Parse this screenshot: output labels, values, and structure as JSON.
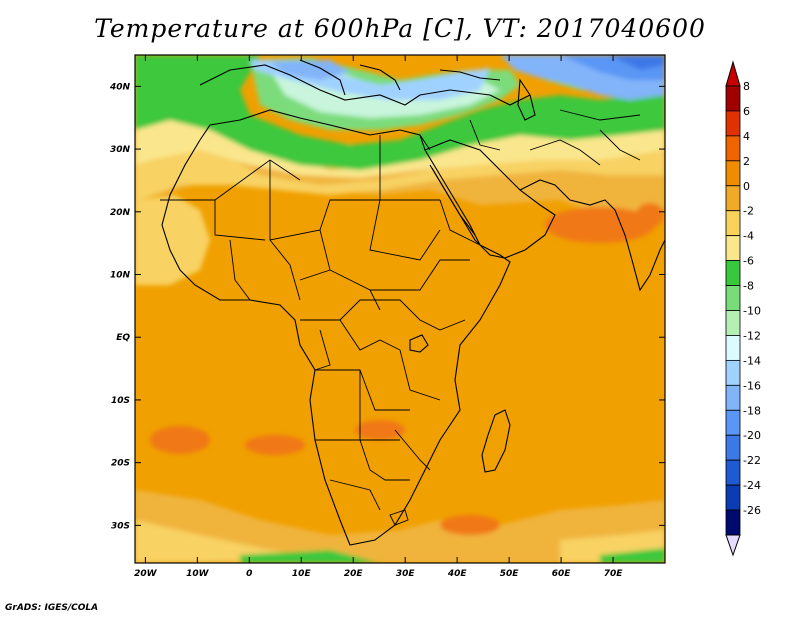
{
  "title": "Temperature at 600hPa [C], VT: 2017040600",
  "credit": "GrADS: IGES/COLA",
  "map": {
    "lon_labels": [
      "20W",
      "10W",
      "0",
      "10E",
      "20E",
      "30E",
      "40E",
      "50E",
      "60E",
      "70E"
    ],
    "lon_values": [
      -20,
      -10,
      0,
      10,
      20,
      30,
      40,
      50,
      60,
      70
    ],
    "lat_labels": [
      "40N",
      "30N",
      "20N",
      "10N",
      "EQ",
      "10S",
      "20S",
      "30S"
    ],
    "lat_values": [
      40,
      30,
      20,
      10,
      0,
      -10,
      -20,
      -30
    ],
    "lon_range": [
      -22,
      80
    ],
    "lat_range": [
      -36,
      45
    ],
    "units": "C"
  },
  "colorbar": {
    "labels": [
      "8",
      "6",
      "4",
      "2",
      "0",
      "-2",
      "-4",
      "-6",
      "-8",
      "-10",
      "-12",
      "-14",
      "-16",
      "-18",
      "-20",
      "-22",
      "-24",
      "-26"
    ],
    "colors": [
      "#a00000",
      "#e03200",
      "#f06400",
      "#f08c00",
      "#f0aa28",
      "#f8d25a",
      "#fae68c",
      "#37c83c",
      "#78dc78",
      "#b4f0b4",
      "#dcfaff",
      "#a0d2ff",
      "#82b4fa",
      "#5a96f5",
      "#3c78e6",
      "#1e5ad2",
      "#0a3cb4",
      "#000a6e"
    ],
    "over_color": "#c80000",
    "under_color": "#e6dcff"
  }
}
